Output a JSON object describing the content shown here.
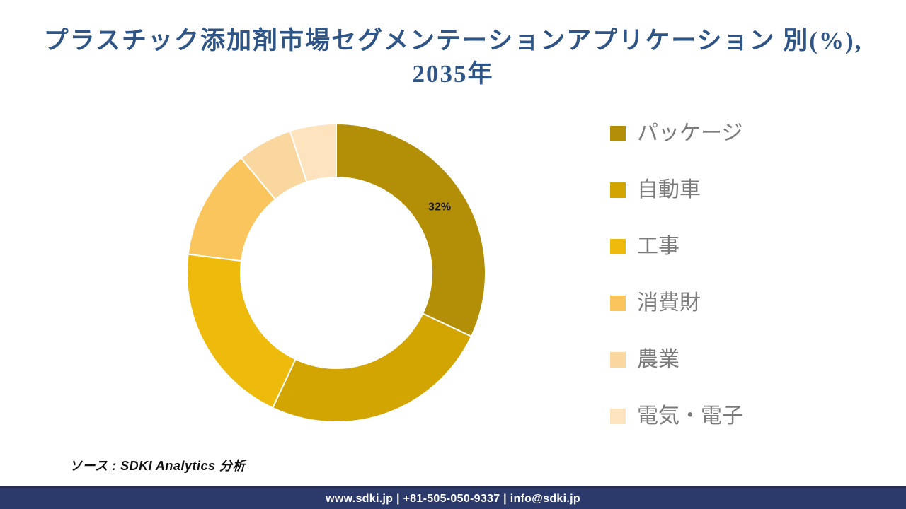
{
  "header": {
    "title_line1": "プラスチック添加剤市場セグメンテーションアプリケーション 別(%),",
    "title_line2": "2035年",
    "title_color": "#2F5486"
  },
  "chart_data": {
    "type": "pie",
    "subtype": "donut",
    "title": "プラスチック添加剤市場セグメンテーションアプリケーション 別(%), 2035年",
    "unit": "%",
    "legend_position": "right",
    "start_angle_deg": 0,
    "direction": "clockwise",
    "inner_radius_ratio": 0.64,
    "categories": [
      "パッケージ",
      "自動車",
      "工事",
      "消費財",
      "農業",
      "電気・電子"
    ],
    "series": [
      {
        "name": "パッケージ",
        "value": 32,
        "label": "32%",
        "color": "#B28F06"
      },
      {
        "name": "自動車",
        "value": 25,
        "label": "",
        "color": "#D2A503"
      },
      {
        "name": "工事",
        "value": 20,
        "label": "",
        "color": "#EEBB0D"
      },
      {
        "name": "消費財",
        "value": 12,
        "label": "",
        "color": "#FAC55C"
      },
      {
        "name": "農業",
        "value": 6,
        "label": "",
        "color": "#FAD79F"
      },
      {
        "name": "電気・電子",
        "value": 5,
        "label": "",
        "color": "#FDE3BE"
      }
    ],
    "label_color": "#1A1A1A"
  },
  "source": {
    "text": "ソース : SDKI Analytics 分析"
  },
  "footer": {
    "text": "www.sdki.jp | +81-505-050-9337 | info@sdki.jp",
    "background": "#2C396B"
  }
}
